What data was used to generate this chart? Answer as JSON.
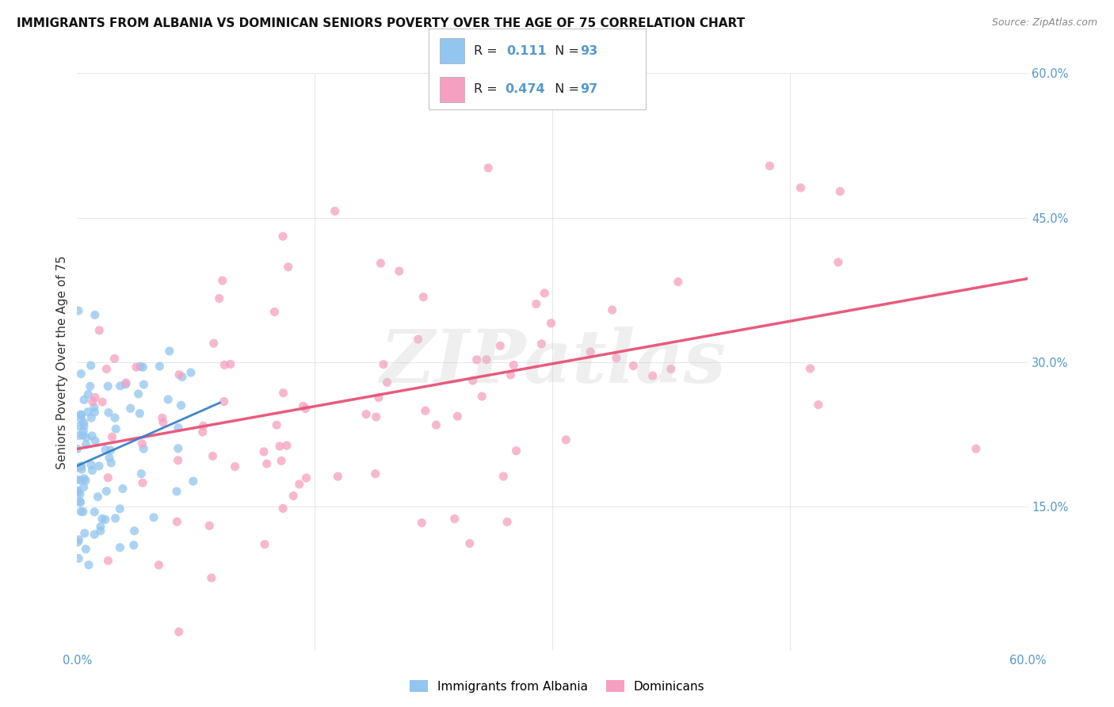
{
  "title": "IMMIGRANTS FROM ALBANIA VS DOMINICAN SENIORS POVERTY OVER THE AGE OF 75 CORRELATION CHART",
  "source": "Source: ZipAtlas.com",
  "ylabel": "Seniors Poverty Over the Age of 75",
  "xmin": 0.0,
  "xmax": 0.6,
  "ymin": 0.0,
  "ymax": 0.6,
  "albania_R": 0.111,
  "albania_N": 93,
  "dominican_R": 0.474,
  "dominican_N": 97,
  "albania_color": "#92c5f0",
  "dominican_color": "#f5a0c0",
  "albania_line_color": "#3a7fc4",
  "dominican_line_color_solid": "#e8557a",
  "dominican_line_color_dash": "#aaaaaa",
  "legend_albania_label": "Immigrants from Albania",
  "legend_dominican_label": "Dominicans",
  "watermark_text": "ZIPatlas",
  "background_color": "#ffffff",
  "grid_color": "#e8e8e8",
  "title_fontsize": 11,
  "axis_tick_color": "#5599cc",
  "seed": 42
}
